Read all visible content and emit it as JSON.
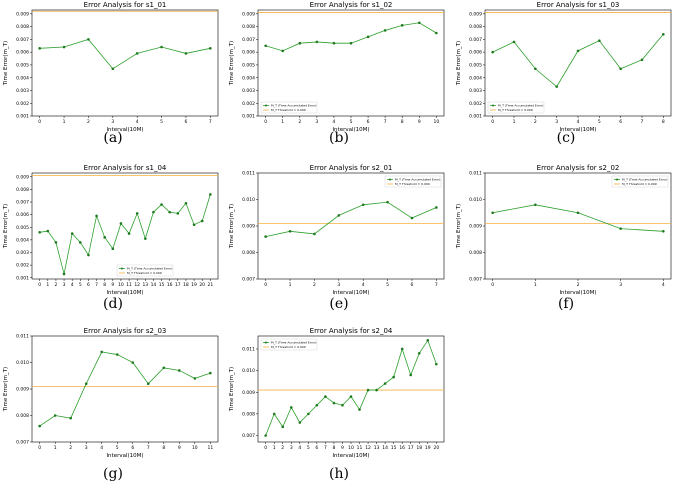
{
  "colors": {
    "line": "#2ca02c",
    "marker": "#1f7a1f",
    "threshold": "#f5b041",
    "frame": "#000000"
  },
  "legend": {
    "line": "M_T (Time Accumulated Error)",
    "threshold": "M_T Threshold = 0.009"
  },
  "chart_data": [
    {
      "id": "s1_01",
      "type": "line",
      "caption": "(a)",
      "title": "Error Analysis for s1_01",
      "xlabel": "Interval(10M)",
      "ylabel": "Time Error(m_T)",
      "ylim": [
        0.001,
        0.0093
      ],
      "yticks": [
        0.001,
        0.002,
        0.003,
        0.004,
        0.005,
        0.006,
        0.007,
        0.008,
        0.009
      ],
      "ytick_labels": [
        "0.001",
        "0.002",
        "0.003",
        "0.004",
        "0.005",
        "0.006",
        "0.007",
        "0.008",
        "0.009"
      ],
      "x": [
        0,
        1,
        2,
        3,
        4,
        5,
        6,
        7
      ],
      "values": [
        0.0063,
        0.0064,
        0.007,
        0.0047,
        0.0059,
        0.0064,
        0.0059,
        0.0063
      ],
      "threshold": 0.0092,
      "legend_pos": "none"
    },
    {
      "id": "s1_02",
      "type": "line",
      "caption": "(b)",
      "title": "Error Analysis for s1_02",
      "xlabel": "Interval(10M)",
      "ylabel": "Time Error(m_T)",
      "ylim": [
        0.001,
        0.0093
      ],
      "yticks": [
        0.001,
        0.002,
        0.003,
        0.004,
        0.005,
        0.006,
        0.007,
        0.008,
        0.009
      ],
      "ytick_labels": [
        "0.001",
        "0.002",
        "0.003",
        "0.004",
        "0.005",
        "0.006",
        "0.007",
        "0.008",
        "0.009"
      ],
      "x": [
        0,
        1,
        2,
        3,
        4,
        5,
        6,
        7,
        8,
        9,
        10
      ],
      "values": [
        0.0065,
        0.0061,
        0.0067,
        0.0068,
        0.0067,
        0.0067,
        0.0072,
        0.0077,
        0.0081,
        0.0083,
        0.0075
      ],
      "threshold": 0.0091,
      "legend_pos": "lower-left"
    },
    {
      "id": "s1_03",
      "type": "line",
      "caption": "(c)",
      "title": "Error Analysis for s1_03",
      "xlabel": "Interval(10M)",
      "ylabel": "Time Error(m_T)",
      "ylim": [
        0.001,
        0.0093
      ],
      "yticks": [
        0.001,
        0.002,
        0.003,
        0.004,
        0.005,
        0.006,
        0.007,
        0.008,
        0.009
      ],
      "ytick_labels": [
        "0.001",
        "0.002",
        "0.003",
        "0.004",
        "0.005",
        "0.006",
        "0.007",
        "0.008",
        "0.009"
      ],
      "x": [
        0,
        1,
        2,
        3,
        4,
        5,
        6,
        7,
        8
      ],
      "values": [
        0.006,
        0.0068,
        0.0047,
        0.0033,
        0.0061,
        0.0069,
        0.0047,
        0.0054,
        0.0074
      ],
      "threshold": 0.0091,
      "legend_pos": "lower-left"
    },
    {
      "id": "s1_04",
      "type": "line",
      "caption": "(d)",
      "title": "Error Analysis for s1_04",
      "xlabel": "Interval(10M)",
      "ylabel": "Time Error(m_T)",
      "ylim": [
        0.0009,
        0.0093
      ],
      "yticks": [
        0.001,
        0.002,
        0.003,
        0.004,
        0.005,
        0.006,
        0.007,
        0.008,
        0.009
      ],
      "ytick_labels": [
        "0.001",
        "0.002",
        "0.003",
        "0.004",
        "0.005",
        "0.006",
        "0.007",
        "0.008",
        "0.009"
      ],
      "x": [
        0,
        1,
        2,
        3,
        4,
        5,
        6,
        7,
        8,
        9,
        10,
        11,
        12,
        13,
        14,
        15,
        16,
        17,
        18,
        19,
        20,
        21
      ],
      "values": [
        0.0046,
        0.0047,
        0.0038,
        0.0013,
        0.0045,
        0.0038,
        0.0028,
        0.0059,
        0.0042,
        0.0033,
        0.0053,
        0.0045,
        0.0061,
        0.0041,
        0.0062,
        0.0068,
        0.0062,
        0.0061,
        0.0069,
        0.0052,
        0.0055,
        0.0076
      ],
      "threshold": 0.0091,
      "legend_pos": "lower-center"
    },
    {
      "id": "s2_01",
      "type": "line",
      "caption": "(e)",
      "title": "Error Analysis for s2_01",
      "xlabel": "Interval(10M)",
      "ylabel": "Time Error(m_T)",
      "ylim": [
        0.007,
        0.011
      ],
      "yticks": [
        0.007,
        0.008,
        0.009,
        0.01,
        0.011
      ],
      "ytick_labels": [
        "0.007",
        "0.008",
        "0.009",
        "0.010",
        "0.011"
      ],
      "x": [
        0,
        1,
        2,
        3,
        4,
        5,
        6,
        7
      ],
      "values": [
        0.0086,
        0.0088,
        0.0087,
        0.0094,
        0.0098,
        0.0099,
        0.0093,
        0.0097
      ],
      "threshold": 0.0091,
      "legend_pos": "upper-right"
    },
    {
      "id": "s2_02",
      "type": "line",
      "caption": "(f)",
      "title": "Error Analysis for s2_02",
      "xlabel": "Interval(10M)",
      "ylabel": "Time Error(m_T)",
      "ylim": [
        0.007,
        0.011
      ],
      "yticks": [
        0.007,
        0.008,
        0.009,
        0.01,
        0.011
      ],
      "ytick_labels": [
        "0.007",
        "0.008",
        "0.009",
        "0.010",
        "0.011"
      ],
      "x": [
        0,
        1,
        2,
        3,
        4
      ],
      "values": [
        0.0095,
        0.0098,
        0.0095,
        0.0089,
        0.0088
      ],
      "threshold": 0.0091,
      "legend_pos": "upper-right"
    },
    {
      "id": "s2_03",
      "type": "line",
      "caption": "(g)",
      "title": "Error Analysis for s2_03",
      "xlabel": "Interval(10M)",
      "ylabel": "Time Error(m_T)",
      "ylim": [
        0.007,
        0.011
      ],
      "yticks": [
        0.007,
        0.008,
        0.009,
        0.01,
        0.011
      ],
      "ytick_labels": [
        "0.007",
        "0.008",
        "0.009",
        "0.010",
        "0.011"
      ],
      "x": [
        0,
        1,
        2,
        3,
        4,
        5,
        6,
        7,
        8,
        9,
        10,
        11
      ],
      "values": [
        0.0076,
        0.008,
        0.0079,
        0.0092,
        0.0104,
        0.0103,
        0.01,
        0.0092,
        0.0098,
        0.0097,
        0.0094,
        0.0096
      ],
      "threshold": 0.0091,
      "legend_pos": "none"
    },
    {
      "id": "s2_04",
      "type": "line",
      "caption": "(h)",
      "title": "Error Analysis for s2_04",
      "xlabel": "Interval(10M)",
      "ylabel": "Time Error(m_T)",
      "ylim": [
        0.0067,
        0.0116
      ],
      "yticks": [
        0.007,
        0.008,
        0.009,
        0.01,
        0.011
      ],
      "ytick_labels": [
        "0.007",
        "0.008",
        "0.009",
        "0.010",
        "0.011"
      ],
      "x": [
        0,
        1,
        2,
        3,
        4,
        5,
        6,
        7,
        8,
        9,
        10,
        11,
        12,
        13,
        14,
        15,
        16,
        17,
        18,
        19,
        20
      ],
      "values": [
        0.007,
        0.008,
        0.0074,
        0.0083,
        0.0076,
        0.008,
        0.0084,
        0.0088,
        0.0085,
        0.0084,
        0.0088,
        0.0082,
        0.0091,
        0.0091,
        0.0094,
        0.0097,
        0.011,
        0.0098,
        0.0108,
        0.0114,
        0.0103
      ],
      "threshold": 0.0091,
      "legend_pos": "upper-left"
    }
  ]
}
